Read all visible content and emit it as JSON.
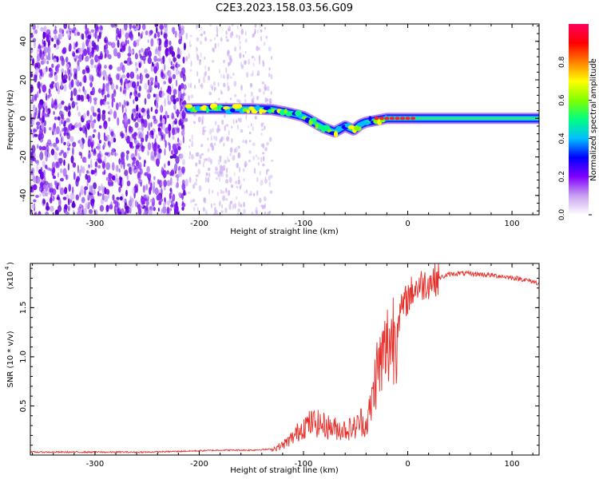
{
  "figure_title": "C2E3.2023.158.03.56.G09",
  "chart_data": [
    {
      "type": "heatmap",
      "title": "C2E3.2023.158.03.56.G09",
      "xlabel": "Height of straight line (km)",
      "ylabel": "Frequency (Hz)",
      "xlim": [
        -362,
        126
      ],
      "ylim": [
        -50,
        49
      ],
      "x_ticks": [
        -300,
        -200,
        -100,
        0,
        100
      ],
      "x_tick_labels": [
        "-300",
        "-200",
        "-100",
        "0",
        "100"
      ],
      "y_ticks": [
        -40,
        -20,
        0,
        20,
        40
      ],
      "y_tick_labels": [
        "-40",
        "-20",
        "0",
        "20",
        "40"
      ],
      "colorbar": {
        "label": "Normalized spectral amplitude",
        "range": [
          0,
          1
        ],
        "ticks": [
          0.0,
          0.2,
          0.4,
          0.6,
          0.8
        ],
        "tick_labels": [
          "0.0",
          "0.2",
          "0.4",
          "0.6",
          "0.8"
        ],
        "colormap": [
          "#ffffff",
          "#c8a0f0",
          "#8000ff",
          "#0000ff",
          "#00c0ff",
          "#00ff80",
          "#80ff00",
          "#ffff00",
          "#ff8000",
          "#ff0000",
          "#ff0060"
        ]
      },
      "ridge_frequency": [
        [
          -210,
          5
        ],
        [
          -190,
          5
        ],
        [
          -170,
          5
        ],
        [
          -150,
          5
        ],
        [
          -130,
          4.5
        ],
        [
          -115,
          3
        ],
        [
          -100,
          1
        ],
        [
          -90,
          -2
        ],
        [
          -80,
          -5
        ],
        [
          -70,
          -7
        ],
        [
          -60,
          -4
        ],
        [
          -52,
          -6
        ],
        [
          -45,
          -3
        ],
        [
          -40,
          -2
        ],
        [
          -30,
          -1
        ],
        [
          -20,
          0
        ],
        [
          0,
          0
        ],
        [
          50,
          0
        ],
        [
          100,
          0
        ],
        [
          126,
          0
        ]
      ],
      "noise_region": [
        -362,
        -212
      ],
      "grid": false
    },
    {
      "type": "line",
      "xlabel": "Height of straight line (km)",
      "ylabel": "SNR (10 * v/v)",
      "y_multiplier_label": "(x10",
      "y_multiplier_exp": "4",
      "xlim": [
        -362,
        126
      ],
      "ylim": [
        0,
        1.95
      ],
      "x_ticks": [
        -300,
        -200,
        -100,
        0,
        100
      ],
      "x_tick_labels": [
        "-300",
        "-200",
        "-100",
        "0",
        "100"
      ],
      "y_ticks": [
        0.5,
        1.0,
        1.5
      ],
      "y_tick_labels": [
        "0.5",
        "1.0",
        "1.5"
      ],
      "color": "#e8302a",
      "series": [
        {
          "x": [
            -362,
            -300,
            -250,
            -210,
            -180,
            -150,
            -130,
            -120,
            -110,
            -100,
            -90,
            -80,
            -70,
            -60,
            -50,
            -45,
            -40,
            -35,
            -30,
            -25,
            -20,
            -15,
            -10,
            -5,
            0,
            5,
            10,
            20,
            30,
            40,
            50,
            70,
            90,
            110,
            126
          ],
          "y": [
            0.03,
            0.03,
            0.03,
            0.04,
            0.05,
            0.05,
            0.06,
            0.1,
            0.18,
            0.3,
            0.33,
            0.3,
            0.27,
            0.26,
            0.28,
            0.35,
            0.3,
            0.5,
            0.85,
            0.95,
            1.1,
            1.2,
            1.35,
            1.5,
            1.6,
            1.68,
            1.72,
            1.76,
            1.8,
            1.84,
            1.85,
            1.84,
            1.82,
            1.79,
            1.75
          ]
        }
      ],
      "grid": false
    }
  ]
}
